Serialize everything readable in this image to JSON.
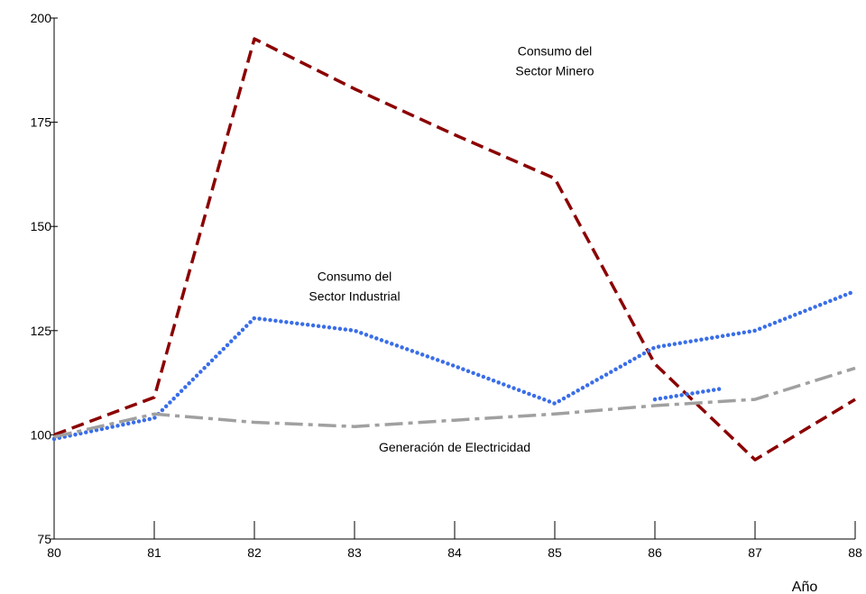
{
  "chart_data": {
    "type": "line",
    "title": "",
    "xlabel": "Año",
    "ylabel": "",
    "x": [
      80,
      81,
      82,
      83,
      84,
      85,
      86,
      87,
      88
    ],
    "xlim": [
      80,
      88
    ],
    "ylim": [
      75,
      200
    ],
    "yticks": [
      75,
      100,
      125,
      150,
      175,
      200
    ],
    "grid": false,
    "legend": "none",
    "series": [
      {
        "name": "Consumo del Sector Minero",
        "color": "#8b0000",
        "style": "dashed",
        "points": [
          [
            80,
            100
          ],
          [
            81,
            109
          ],
          [
            82,
            195
          ],
          [
            83,
            183
          ],
          [
            84,
            172
          ],
          [
            85,
            161.5
          ],
          [
            86,
            117
          ],
          [
            87,
            94
          ],
          [
            88,
            108.5
          ]
        ]
      },
      {
        "name": "Consumo del Sector Industrial",
        "color": "#3a6ee8",
        "style": "dotted",
        "points": [
          [
            80,
            99
          ],
          [
            81,
            104
          ],
          [
            82,
            128
          ],
          [
            83,
            125
          ],
          [
            84,
            116.5
          ],
          [
            85,
            107.5
          ],
          [
            86,
            121
          ],
          [
            87,
            125
          ],
          [
            88,
            134.5
          ]
        ]
      },
      {
        "name": "",
        "color": "#3a6ee8",
        "style": "dotted",
        "points": [
          [
            86,
            108.5
          ],
          [
            86.65,
            111
          ]
        ]
      },
      {
        "name": "Generación de Electricidad",
        "color": "#a0a0a0",
        "style": "dashdot",
        "points": [
          [
            80,
            99.5
          ],
          [
            81,
            105
          ],
          [
            82,
            103
          ],
          [
            83,
            102
          ],
          [
            84,
            103.5
          ],
          [
            85,
            105
          ],
          [
            86,
            107
          ],
          [
            87,
            108.5
          ],
          [
            88,
            116
          ]
        ]
      }
    ],
    "annotations": [
      {
        "lines": [
          "Consumo del",
          "Sector Minero"
        ],
        "x": 85,
        "y": 191
      },
      {
        "lines": [
          "Consumo del",
          "Sector Industrial"
        ],
        "x": 83,
        "y": 137
      },
      {
        "lines": [
          "Generación de Electricidad"
        ],
        "x": 84,
        "y": 96
      }
    ]
  }
}
